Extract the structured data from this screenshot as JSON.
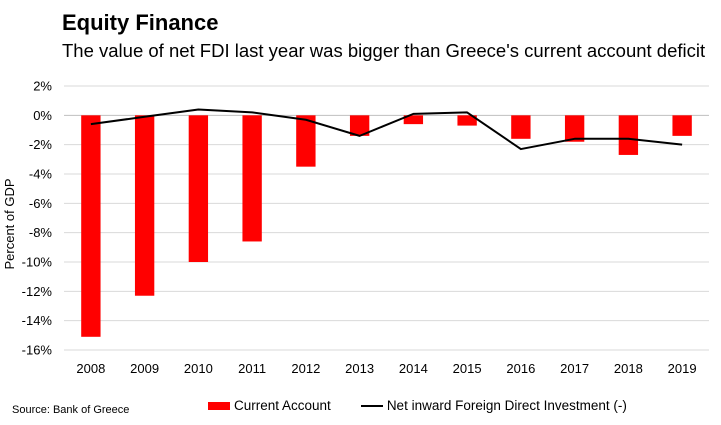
{
  "header": {
    "title": "Equity Finance",
    "subtitle": "The value of net FDI last year was bigger than Greece's current account deficit"
  },
  "footer": {
    "source": "Source: Bank of Greece"
  },
  "colors": {
    "bar": "#ff0000",
    "line": "#000000",
    "grid": "#d9d9d9"
  },
  "chart_data": {
    "type": "bar",
    "title": "Equity Finance",
    "subtitle": "The value of net FDI last year was bigger than Greece's current account deficit",
    "xlabel": "",
    "ylabel": "Percent of GDP",
    "ylim": [
      -16,
      2
    ],
    "yticks": [
      2,
      0,
      -2,
      -4,
      -6,
      -8,
      -10,
      -12,
      -14,
      -16
    ],
    "ytick_labels": [
      "2%",
      "0%",
      "-2%",
      "-4%",
      "-6%",
      "-8%",
      "-10%",
      "-12%",
      "-14%",
      "-16%"
    ],
    "grid": true,
    "legend_position": "bottom",
    "categories": [
      "2008",
      "2009",
      "2010",
      "2011",
      "2012",
      "2013",
      "2014",
      "2015",
      "2016",
      "2017",
      "2018",
      "2019"
    ],
    "series": [
      {
        "name": "Current Account",
        "type": "bar",
        "color": "#ff0000",
        "values": [
          -15.1,
          -12.3,
          -10.0,
          -8.6,
          -3.5,
          -1.4,
          -0.6,
          -0.7,
          -1.6,
          -1.8,
          -2.7,
          -1.4
        ]
      },
      {
        "name": "Net inward Foreign Direct Investment (-)",
        "type": "line",
        "color": "#000000",
        "values": [
          -0.6,
          -0.1,
          0.4,
          0.2,
          -0.3,
          -1.4,
          0.1,
          0.2,
          -2.3,
          -1.6,
          -1.6,
          -2.0
        ]
      }
    ]
  }
}
